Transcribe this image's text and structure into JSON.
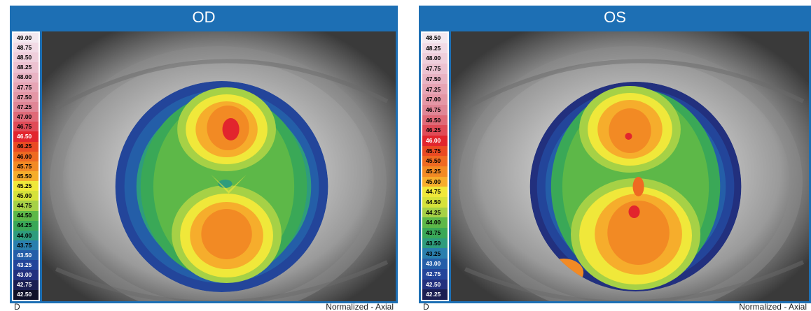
{
  "od": {
    "title": "OD",
    "footer_left": "D",
    "footer_right": "Normalized - Axial",
    "scale": [
      {
        "label": "49.00",
        "color": "#f4e9f0"
      },
      {
        "label": "48.75",
        "color": "#f2dbe6"
      },
      {
        "label": "48.50",
        "color": "#efcfdc"
      },
      {
        "label": "48.25",
        "color": "#ecc2d1"
      },
      {
        "label": "48.00",
        "color": "#e9b4c4"
      },
      {
        "label": "47.75",
        "color": "#e7a5b5"
      },
      {
        "label": "47.50",
        "color": "#e497a6"
      },
      {
        "label": "47.25",
        "color": "#e08696"
      },
      {
        "label": "47.00",
        "color": "#e06a78"
      },
      {
        "label": "46.75",
        "color": "#e04b57"
      },
      {
        "label": "46.50",
        "color": "#e2252d"
      },
      {
        "label": "46.25",
        "color": "#ea4a23"
      },
      {
        "label": "46.00",
        "color": "#ef6a22"
      },
      {
        "label": "45.75",
        "color": "#f28a24"
      },
      {
        "label": "45.50",
        "color": "#f6ad2c"
      },
      {
        "label": "45.25",
        "color": "#f0e83a"
      },
      {
        "label": "45.00",
        "color": "#d6e23a"
      },
      {
        "label": "44.75",
        "color": "#a6d146"
      },
      {
        "label": "44.50",
        "color": "#5db848"
      },
      {
        "label": "44.25",
        "color": "#3aa857"
      },
      {
        "label": "44.00",
        "color": "#2e9c7d"
      },
      {
        "label": "43.75",
        "color": "#2a7fae"
      },
      {
        "label": "43.50",
        "color": "#245ea8"
      },
      {
        "label": "43.25",
        "color": "#23459a"
      },
      {
        "label": "43.00",
        "color": "#22307e"
      },
      {
        "label": "42.75",
        "color": "#1a1e52"
      },
      {
        "label": "42.50",
        "color": "#101228"
      }
    ]
  },
  "os": {
    "title": "OS",
    "footer_left": "D",
    "footer_right": "Normalized - Axial",
    "scale": [
      {
        "label": "48.50",
        "color": "#f4e9f0"
      },
      {
        "label": "48.25",
        "color": "#f2dbe6"
      },
      {
        "label": "48.00",
        "color": "#efcfdc"
      },
      {
        "label": "47.75",
        "color": "#ecc2d1"
      },
      {
        "label": "47.50",
        "color": "#e9b4c4"
      },
      {
        "label": "47.25",
        "color": "#e7a5b5"
      },
      {
        "label": "47.00",
        "color": "#e497a6"
      },
      {
        "label": "46.75",
        "color": "#e08696"
      },
      {
        "label": "46.50",
        "color": "#e06a78"
      },
      {
        "label": "46.25",
        "color": "#e04b57"
      },
      {
        "label": "46.00",
        "color": "#e2252d"
      },
      {
        "label": "45.75",
        "color": "#ea4a23"
      },
      {
        "label": "45.50",
        "color": "#ef6a22"
      },
      {
        "label": "45.25",
        "color": "#f28a24"
      },
      {
        "label": "45.00",
        "color": "#f6ad2c"
      },
      {
        "label": "44.75",
        "color": "#f0e83a"
      },
      {
        "label": "44.50",
        "color": "#d6e23a"
      },
      {
        "label": "44.25",
        "color": "#a6d146"
      },
      {
        "label": "44.00",
        "color": "#5db848"
      },
      {
        "label": "43.75",
        "color": "#3aa857"
      },
      {
        "label": "43.50",
        "color": "#2e9c7d"
      },
      {
        "label": "43.25",
        "color": "#2a7fae"
      },
      {
        "label": "43.00",
        "color": "#245ea8"
      },
      {
        "label": "42.75",
        "color": "#23459a"
      },
      {
        "label": "42.50",
        "color": "#22307e"
      },
      {
        "label": "42.25",
        "color": "#1a1e52"
      }
    ]
  },
  "colors": {
    "title_bar": "#1d6fb4",
    "frame": "#1d6fb4"
  }
}
